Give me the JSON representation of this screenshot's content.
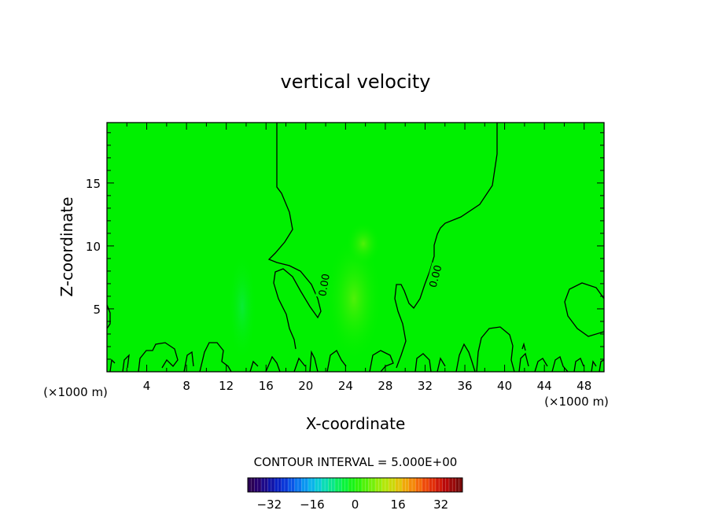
{
  "chart_data": {
    "type": "heatmap",
    "title": "vertical velocity",
    "xlabel": "X-coordinate",
    "ylabel": "Z-coordinate",
    "x_unit_label_left": "(×1000 m)",
    "x_unit_label_right": "(×1000 m)",
    "xlim": [
      0,
      50
    ],
    "ylim": [
      0,
      19.8
    ],
    "x_ticks": [
      4,
      8,
      12,
      16,
      20,
      24,
      28,
      32,
      36,
      40,
      44,
      48
    ],
    "y_ticks": [
      5,
      10,
      15
    ],
    "contour_labels": [
      {
        "text": "0.00",
        "x": 21.8,
        "z": 6.9,
        "rotate": -80
      },
      {
        "text": "0.00",
        "x": 33.0,
        "z": 7.6,
        "rotate": -75
      }
    ],
    "contour_interval_text": "CONTOUR INTERVAL = 5.000E+00",
    "colorbar": {
      "min": -40,
      "max": 40,
      "ticks": [
        -32,
        -16,
        0,
        16,
        32
      ],
      "colors": [
        "#2a0055",
        "#26006e",
        "#1d0a8a",
        "#1014a8",
        "#0a22c4",
        "#0a38d8",
        "#0a56e6",
        "#0a76ee",
        "#0a96f0",
        "#0ab4ea",
        "#0acbd6",
        "#0adcb4",
        "#0ae68c",
        "#0aee60",
        "#0af43a",
        "#18f418",
        "#30f40a",
        "#52f20a",
        "#74f00a",
        "#96ec0a",
        "#b4e60a",
        "#ccd80a",
        "#e2c40a",
        "#f0a80a",
        "#f48a0a",
        "#f46a0a",
        "#ee4a0a",
        "#e2300a",
        "#d01a0a",
        "#b80a0a",
        "#9a0a0a",
        "#7c0a0a"
      ]
    },
    "field_background": "#00f000",
    "grid": false
  }
}
